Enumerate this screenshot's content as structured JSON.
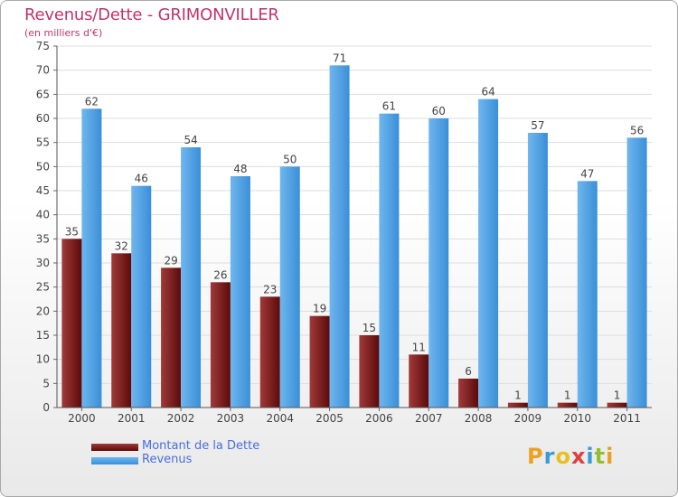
{
  "colors": {
    "title": "#c0346a",
    "debt_light": "#a03a3a",
    "debt_dark": "#5c0a0a",
    "revenue_light": "#6fb6ee",
    "revenue_dark": "#3a8fd8",
    "grid": "#dddddd",
    "axis_text": "#444444",
    "legend_text": "#4a6ee0"
  },
  "brand": {
    "letters": [
      "P",
      "r",
      "o",
      "x",
      "i",
      "t",
      "i"
    ],
    "letter_colors": [
      "#f0a020",
      "#3a9ad8",
      "#e8c020",
      "#e04040",
      "#3a9ad8",
      "#90c030",
      "#e8a020"
    ]
  },
  "chart_data": {
    "type": "bar",
    "title": "Revenus/Dette - GRIMONVILLER",
    "subtitle": "(en milliers d'€)",
    "categories": [
      "2000",
      "2001",
      "2002",
      "2003",
      "2004",
      "2005",
      "2006",
      "2007",
      "2008",
      "2009",
      "2010",
      "2011"
    ],
    "series": [
      {
        "name": "Montant de la Dette",
        "values": [
          35,
          32,
          29,
          26,
          23,
          19,
          15,
          11,
          6,
          1,
          1,
          1
        ]
      },
      {
        "name": "Revenus",
        "values": [
          62,
          46,
          54,
          48,
          50,
          71,
          61,
          60,
          64,
          57,
          47,
          56
        ]
      }
    ],
    "yticks": [
      "0",
      "5",
      "10",
      "15",
      "20",
      "25",
      "30",
      "35",
      "40",
      "45",
      "50",
      "55",
      "60",
      "65",
      "70",
      "75"
    ],
    "ylim": [
      0,
      75
    ],
    "grid": true,
    "legend_position": "bottom-left"
  }
}
